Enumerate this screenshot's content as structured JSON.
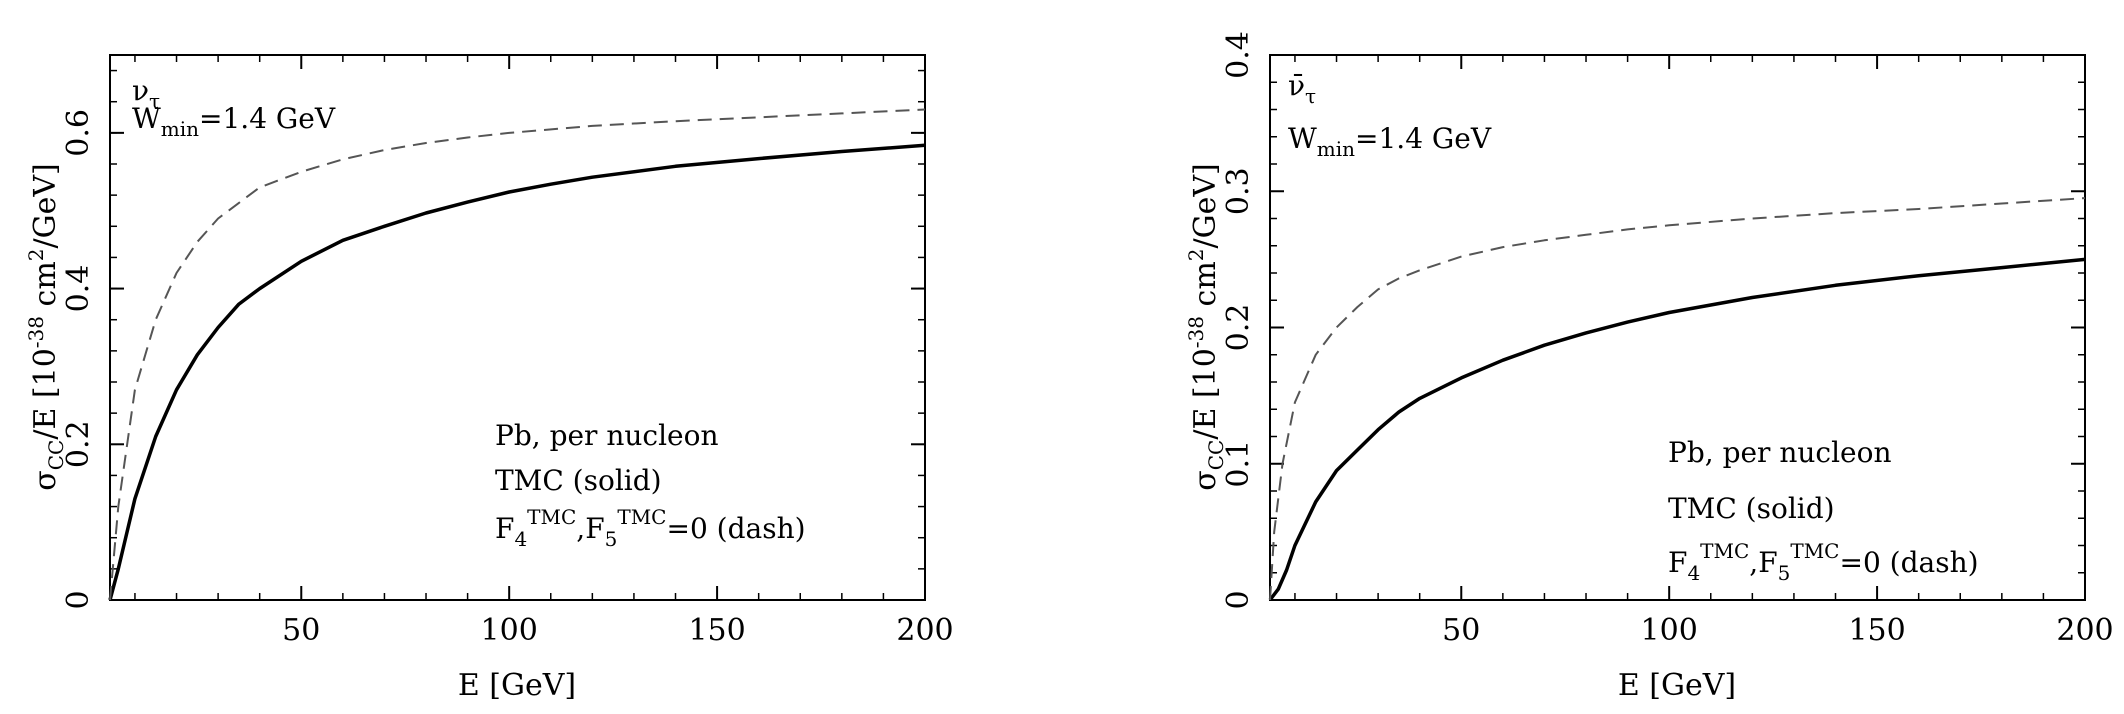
{
  "chart_data": [
    {
      "type": "line",
      "xlabel": "E [GeV]",
      "ylabel_parts": {
        "sigma": "σ",
        "sub": "CC",
        "mid": "/E [10",
        "exp": "-38",
        "end": " cm",
        "exp2": "2",
        "tail": "/GeV]"
      },
      "xlim": [
        4,
        200
      ],
      "ylim": [
        0,
        0.7
      ],
      "x_ticks": [
        50,
        100,
        150,
        200
      ],
      "y_ticks": [
        0,
        0.2,
        0.4,
        0.6
      ],
      "x_tick_labels": [
        "50",
        "100",
        "150",
        "200"
      ],
      "y_tick_labels": [
        "0",
        "0.2",
        "0.4",
        "0.6"
      ],
      "grid": false,
      "annotations": {
        "particle": "ν",
        "particle_sub": "τ",
        "wmin_prefix": "W",
        "wmin_sub": "min",
        "wmin_value": "=1.4  GeV",
        "target": "Pb, per nucleon",
        "solid_label": "TMC (solid)",
        "dash_f4": "F",
        "dash_f4_sub": "4",
        "dash_f4_sup": "TMC",
        "dash_f5": ",F",
        "dash_f5_sub": "5",
        "dash_f5_sup": "TMC",
        "dash_end": "=0 (dash)"
      },
      "series": [
        {
          "line_style": "solid",
          "x": [
            4,
            6,
            10,
            15,
            20,
            25,
            30,
            35,
            40,
            50,
            60,
            70,
            80,
            90,
            100,
            110,
            120,
            140,
            160,
            180,
            200
          ],
          "y": [
            0.0,
            0.04,
            0.13,
            0.21,
            0.27,
            0.315,
            0.35,
            0.38,
            0.4,
            0.435,
            0.462,
            0.48,
            0.497,
            0.511,
            0.524,
            0.534,
            0.543,
            0.557,
            0.567,
            0.576,
            0.584
          ]
        },
        {
          "line_style": "dashed",
          "x": [
            4,
            6,
            10,
            15,
            20,
            25,
            30,
            35,
            40,
            50,
            60,
            70,
            80,
            90,
            100,
            120,
            140,
            160,
            180,
            200
          ],
          "y": [
            0.0,
            0.12,
            0.27,
            0.36,
            0.42,
            0.46,
            0.49,
            0.51,
            0.53,
            0.55,
            0.566,
            0.578,
            0.587,
            0.594,
            0.6,
            0.609,
            0.615,
            0.62,
            0.625,
            0.63
          ]
        }
      ]
    },
    {
      "type": "line",
      "xlabel": "E [GeV]",
      "ylabel_parts": {
        "sigma": "σ",
        "sub": "CC",
        "mid": "/E [10",
        "exp": "-38",
        "end": " cm",
        "exp2": "2",
        "tail": "/GeV]"
      },
      "xlim": [
        4,
        200
      ],
      "ylim": [
        0,
        0.4
      ],
      "x_ticks": [
        50,
        100,
        150,
        200
      ],
      "y_ticks": [
        0,
        0.1,
        0.2,
        0.3,
        0.4
      ],
      "x_tick_labels": [
        "50",
        "100",
        "150",
        "200"
      ],
      "y_tick_labels": [
        "0",
        "0.1",
        "0.2",
        "0.3",
        "0.4"
      ],
      "grid": false,
      "annotations": {
        "particle": "ν̄",
        "particle_sub": "τ",
        "wmin_prefix": "W",
        "wmin_sub": "min",
        "wmin_value": "=1.4  GeV",
        "target": "Pb, per nucleon",
        "solid_label": "TMC (solid)",
        "dash_f4": "F",
        "dash_f4_sub": "4",
        "dash_f4_sup": "TMC",
        "dash_f5": ",F",
        "dash_f5_sub": "5",
        "dash_f5_sup": "TMC",
        "dash_end": "=0 (dash)"
      },
      "series": [
        {
          "line_style": "solid",
          "x": [
            4,
            6,
            8,
            10,
            15,
            20,
            25,
            30,
            35,
            40,
            50,
            60,
            70,
            80,
            90,
            100,
            120,
            140,
            160,
            180,
            200
          ],
          "y": [
            0.0,
            0.008,
            0.022,
            0.04,
            0.072,
            0.095,
            0.11,
            0.125,
            0.138,
            0.148,
            0.163,
            0.176,
            0.187,
            0.196,
            0.204,
            0.211,
            0.222,
            0.231,
            0.238,
            0.244,
            0.25
          ]
        },
        {
          "line_style": "dashed",
          "x": [
            4,
            5,
            7,
            10,
            15,
            20,
            25,
            30,
            35,
            40,
            50,
            60,
            70,
            80,
            90,
            100,
            120,
            140,
            160,
            180,
            200
          ],
          "y": [
            0.0,
            0.05,
            0.1,
            0.145,
            0.18,
            0.2,
            0.215,
            0.228,
            0.236,
            0.242,
            0.252,
            0.259,
            0.264,
            0.268,
            0.272,
            0.275,
            0.28,
            0.284,
            0.287,
            0.291,
            0.295
          ]
        }
      ]
    }
  ]
}
